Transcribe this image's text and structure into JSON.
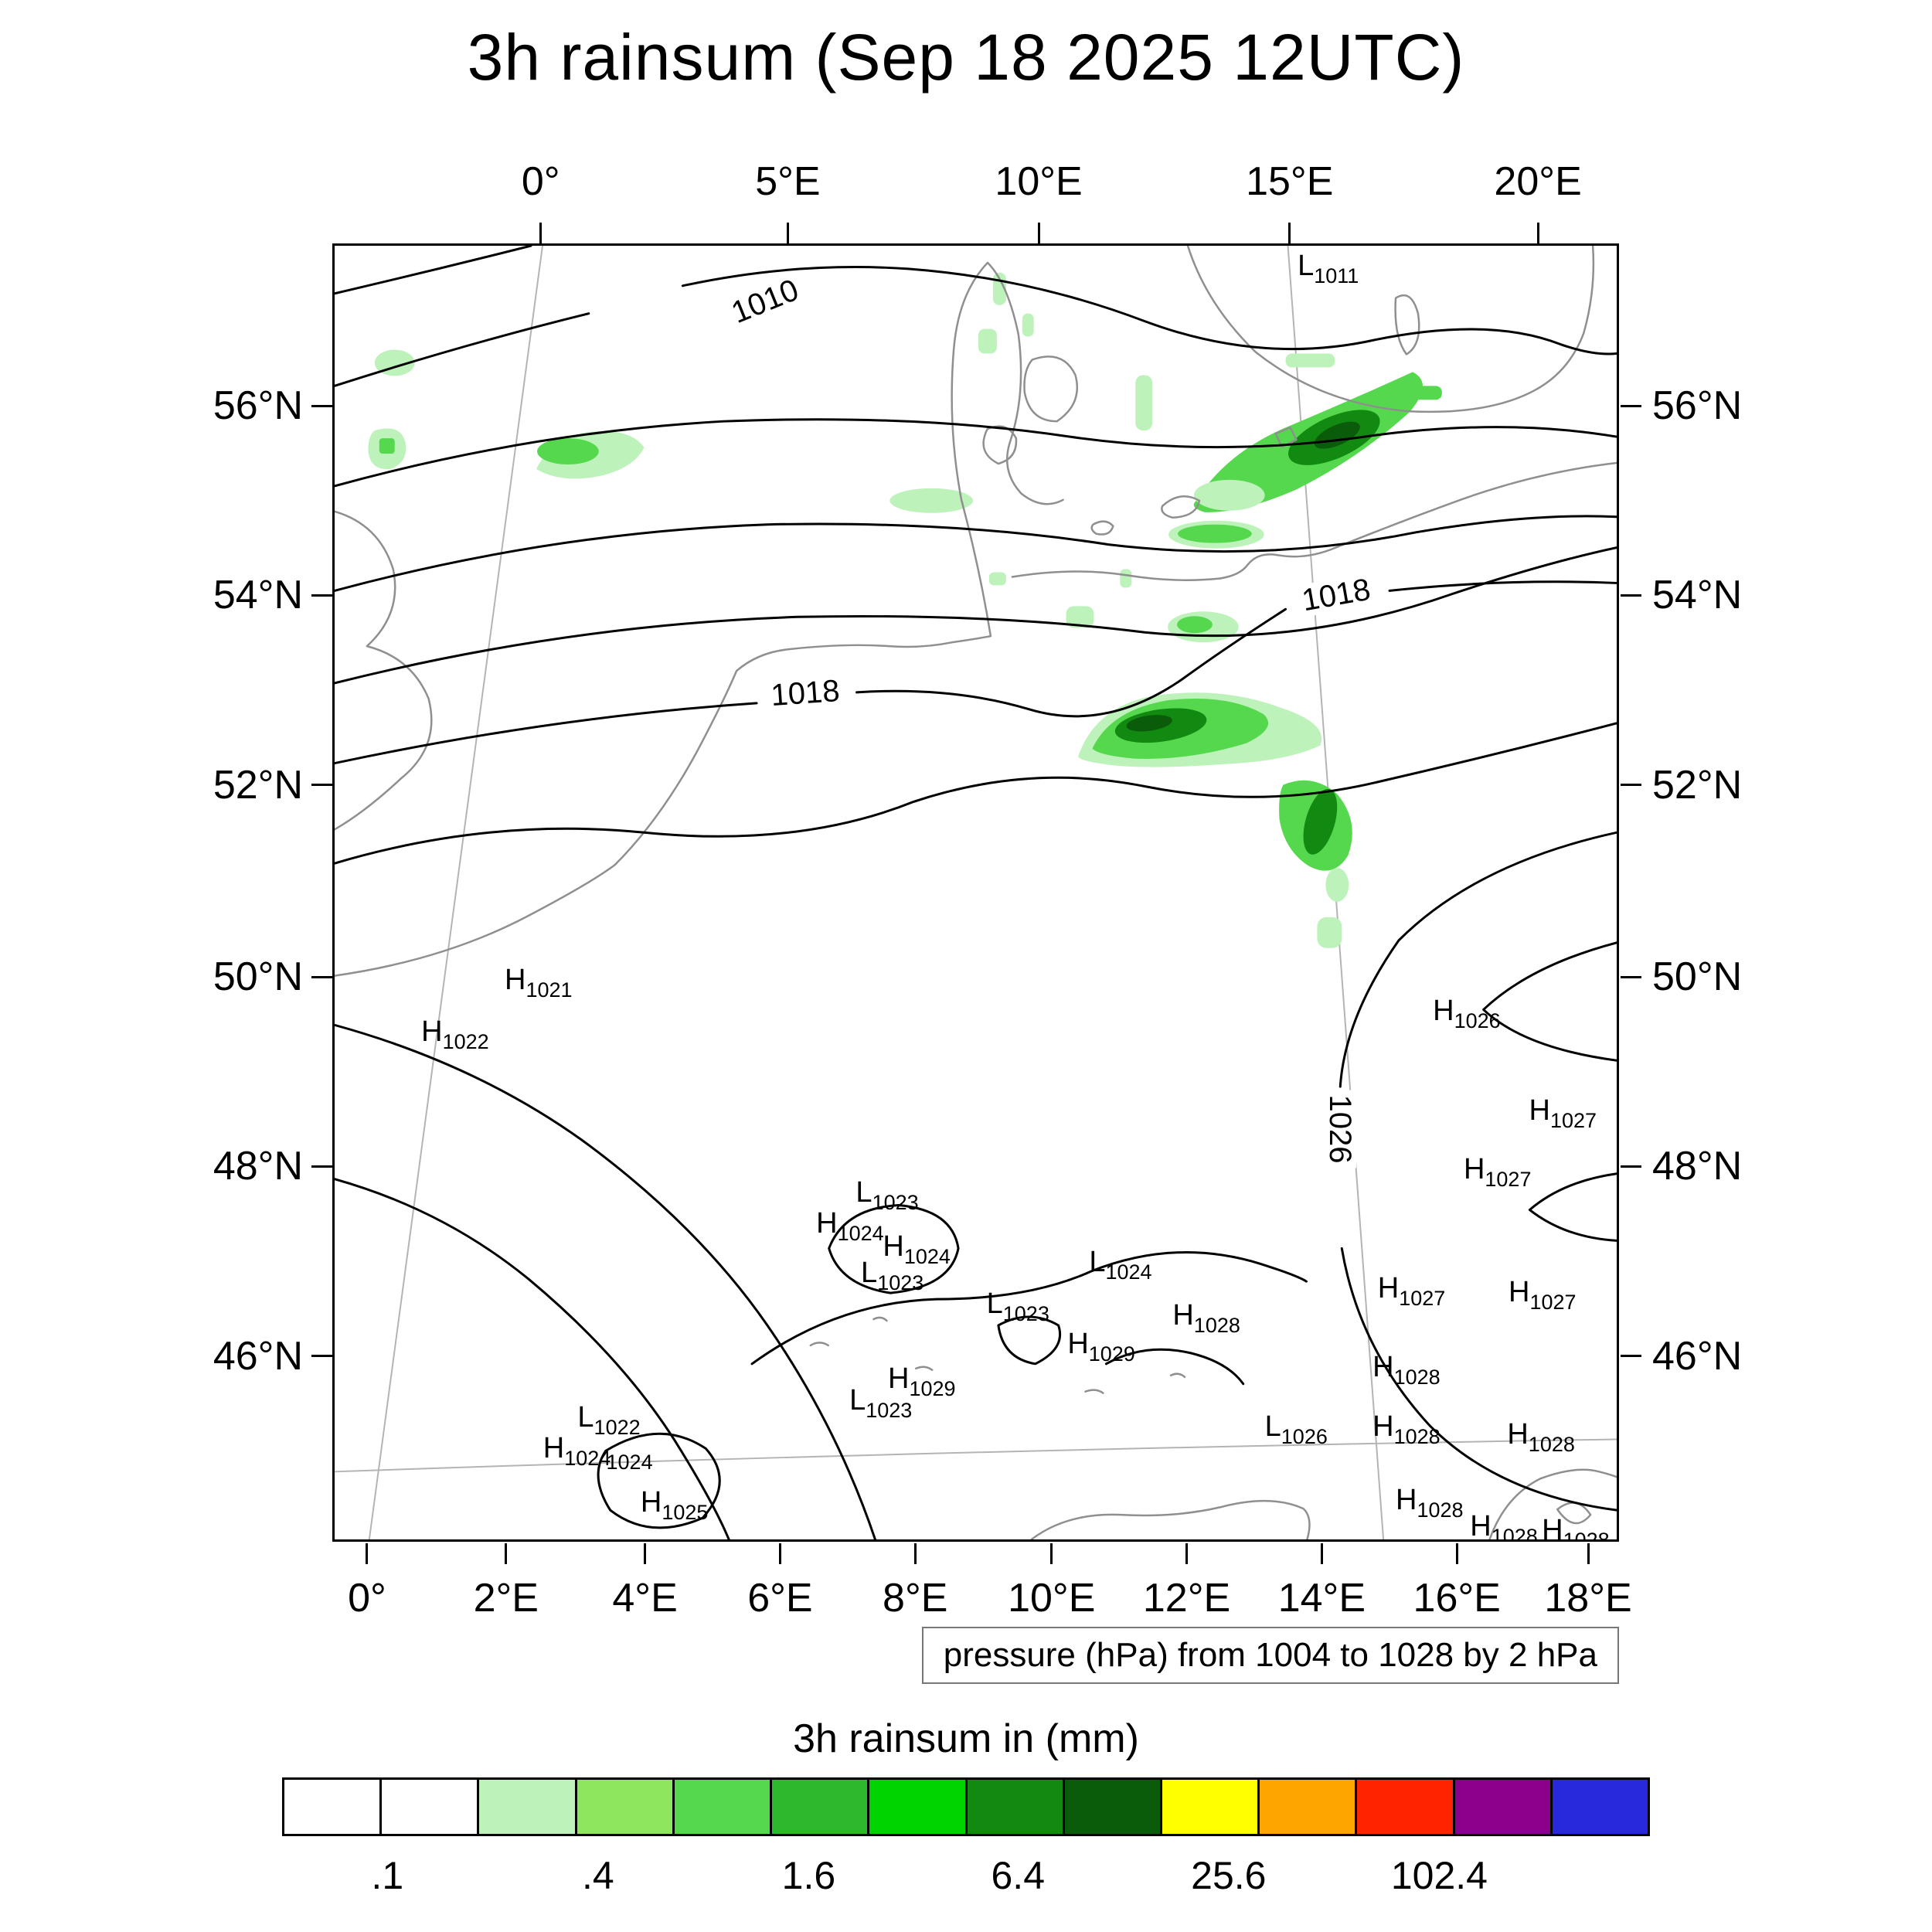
{
  "chart_data": {
    "type": "heatmap",
    "title": "3h rainsum (Sep 18 2025 12UTC)",
    "colorbar_title": "3h rainsum in (mm)",
    "pressure_note": "pressure (hPa) from 1004 to 1028 by 2 hPa",
    "pressure_range_hpa": [
      1004,
      1028
    ],
    "pressure_interval_hpa": 2,
    "axes": {
      "top": {
        "labels": [
          "0°",
          "5°E",
          "10°E",
          "15°E",
          "20°E"
        ],
        "positions_pct": [
          16.2,
          35.4,
          54.9,
          74.4,
          93.7
        ]
      },
      "bottom": {
        "labels": [
          "0°",
          "2°E",
          "4°E",
          "6°E",
          "8°E",
          "10°E",
          "12°E",
          "14°E",
          "16°E",
          "18°E"
        ],
        "positions_pct": [
          2.7,
          13.5,
          24.3,
          34.8,
          45.3,
          55.9,
          66.4,
          76.9,
          87.4,
          97.6
        ]
      },
      "left": {
        "labels": [
          "56°N",
          "54°N",
          "52°N",
          "50°N",
          "48°N",
          "46°N"
        ],
        "positions_pct": [
          12.5,
          27.1,
          41.7,
          56.5,
          71.1,
          85.7
        ]
      },
      "right": {
        "labels": [
          "56°N",
          "54°N",
          "52°N",
          "50°N",
          "48°N",
          "46°N"
        ],
        "positions_pct": [
          12.5,
          27.1,
          41.7,
          56.5,
          71.1,
          85.7
        ]
      }
    },
    "colorbar": {
      "colors": [
        "#ffffff",
        "#ffffff",
        "#bdf2bb",
        "#8de65e",
        "#55d84e",
        "#2eb82e",
        "#00d400",
        "#128a12",
        "#0a5c0a",
        "#ffff00",
        "#ffa500",
        "#ff2400",
        "#8b008b",
        "#2828dd"
      ],
      "tick_labels": [
        ".1",
        ".4",
        "1.6",
        "6.4",
        "25.6",
        "102.4"
      ],
      "tick_positions_pct": [
        7.7,
        23.1,
        38.5,
        53.8,
        69.2,
        84.6
      ],
      "levels_mm": [
        0.1,
        0.2,
        0.4,
        0.8,
        1.6,
        3.2,
        6.4,
        12.8,
        25.6,
        51.2,
        102.4,
        204.8
      ]
    },
    "contour_labels": [
      {
        "text": "1010",
        "x": 33.6,
        "y": 4.3,
        "rot": -22
      },
      {
        "text": "1018",
        "x": 78.1,
        "y": 27.0,
        "rot": -10
      },
      {
        "text": "1018",
        "x": 36.7,
        "y": 34.6,
        "rot": -4
      },
      {
        "text": "1026",
        "x": 78.4,
        "y": 68.3,
        "rot": 90
      }
    ],
    "pressure_centers": [
      {
        "letter": "L",
        "value": "1011",
        "x": 77.5,
        "y": 1.8
      },
      {
        "letter": "H",
        "value": "1021",
        "x": 15.9,
        "y": 57.0
      },
      {
        "letter": "H",
        "value": "1022",
        "x": 9.4,
        "y": 61.0
      },
      {
        "letter": "H",
        "value": "1026",
        "x": 88.3,
        "y": 59.4
      },
      {
        "letter": "H",
        "value": "1027",
        "x": 95.8,
        "y": 67.1
      },
      {
        "letter": "H",
        "value": "1027",
        "x": 90.7,
        "y": 71.6
      },
      {
        "letter": "L",
        "value": "1023",
        "x": 43.1,
        "y": 73.4
      },
      {
        "letter": "H",
        "value": "1024",
        "x": 40.2,
        "y": 75.8
      },
      {
        "letter": "H",
        "value": "1024",
        "x": 45.4,
        "y": 77.6
      },
      {
        "letter": "L",
        "value": "1023",
        "x": 43.5,
        "y": 79.6
      },
      {
        "letter": "L",
        "value": "1024",
        "x": 61.3,
        "y": 78.8
      },
      {
        "letter": "L",
        "value": "1023",
        "x": 53.3,
        "y": 82.0
      },
      {
        "letter": "H",
        "value": "1028",
        "x": 68.0,
        "y": 82.9
      },
      {
        "letter": "H",
        "value": "1029",
        "x": 59.8,
        "y": 85.1
      },
      {
        "letter": "H",
        "value": "1027",
        "x": 84.0,
        "y": 80.8
      },
      {
        "letter": "H",
        "value": "1027",
        "x": 94.2,
        "y": 81.1
      },
      {
        "letter": "H",
        "value": "1029",
        "x": 45.8,
        "y": 87.8
      },
      {
        "letter": "L",
        "value": "1023",
        "x": 42.6,
        "y": 89.5
      },
      {
        "letter": "H",
        "value": "1028",
        "x": 83.6,
        "y": 86.9
      },
      {
        "letter": "L",
        "value": "1022",
        "x": 21.4,
        "y": 90.8
      },
      {
        "letter": "H",
        "value": "1024",
        "x": 18.9,
        "y": 93.2
      },
      {
        "letter": "",
        "value": "1024",
        "x": 23.0,
        "y": 93.5
      },
      {
        "letter": "L",
        "value": "1026",
        "x": 75.0,
        "y": 91.5
      },
      {
        "letter": "H",
        "value": "1028",
        "x": 83.6,
        "y": 91.5
      },
      {
        "letter": "H",
        "value": "1028",
        "x": 94.1,
        "y": 92.1
      },
      {
        "letter": "H",
        "value": "1025",
        "x": 26.5,
        "y": 97.4
      },
      {
        "letter": "H",
        "value": "1028",
        "x": 85.4,
        "y": 97.2
      },
      {
        "letter": "H",
        "value": "1028",
        "x": 91.2,
        "y": 99.2
      },
      {
        "letter": "H",
        "value": "1028",
        "x": 96.8,
        "y": 99.5
      }
    ]
  }
}
